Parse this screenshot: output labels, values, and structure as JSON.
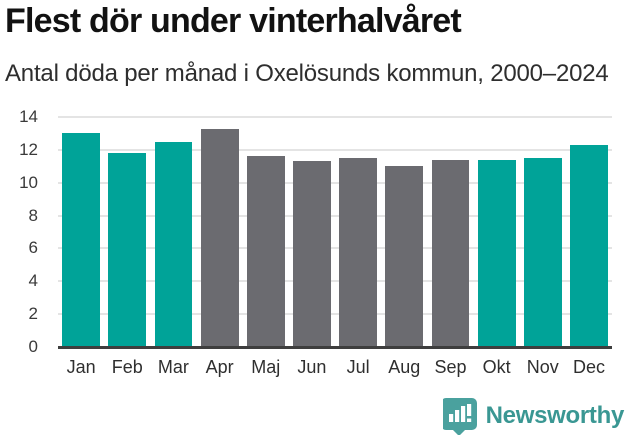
{
  "title": "Flest dör under vinterhalvåret",
  "subtitle": "Antal döda per månad i Oxelösunds kommun, 2000–2024",
  "chart_data": {
    "type": "bar",
    "categories": [
      "Jan",
      "Feb",
      "Mar",
      "Apr",
      "Maj",
      "Jun",
      "Jul",
      "Aug",
      "Sep",
      "Okt",
      "Nov",
      "Dec"
    ],
    "values": [
      13.0,
      11.8,
      12.5,
      13.3,
      11.6,
      11.3,
      11.5,
      11.0,
      11.4,
      11.4,
      11.5,
      12.3
    ],
    "bar_colors": [
      "highlight",
      "highlight",
      "highlight",
      "default",
      "default",
      "default",
      "default",
      "default",
      "default",
      "highlight",
      "highlight",
      "highlight"
    ],
    "title": "Flest dör under vinterhalvåret",
    "xlabel": "",
    "ylabel": "",
    "ylim": [
      0,
      14
    ],
    "yticks": [
      0,
      2,
      4,
      6,
      8,
      10,
      12,
      14
    ],
    "grid": "horizontal",
    "legend": "none",
    "colors": {
      "highlight": "#00a398",
      "default": "#6b6b70",
      "gridline": "#e4e4e4",
      "axis": "#3e3e3e"
    }
  },
  "footer": {
    "brand": "Newsworthy",
    "logo_icon": "bar-chart-speech-bubble-icon",
    "brand_color": "#3a9793",
    "icon_color": "#4aa19e"
  }
}
